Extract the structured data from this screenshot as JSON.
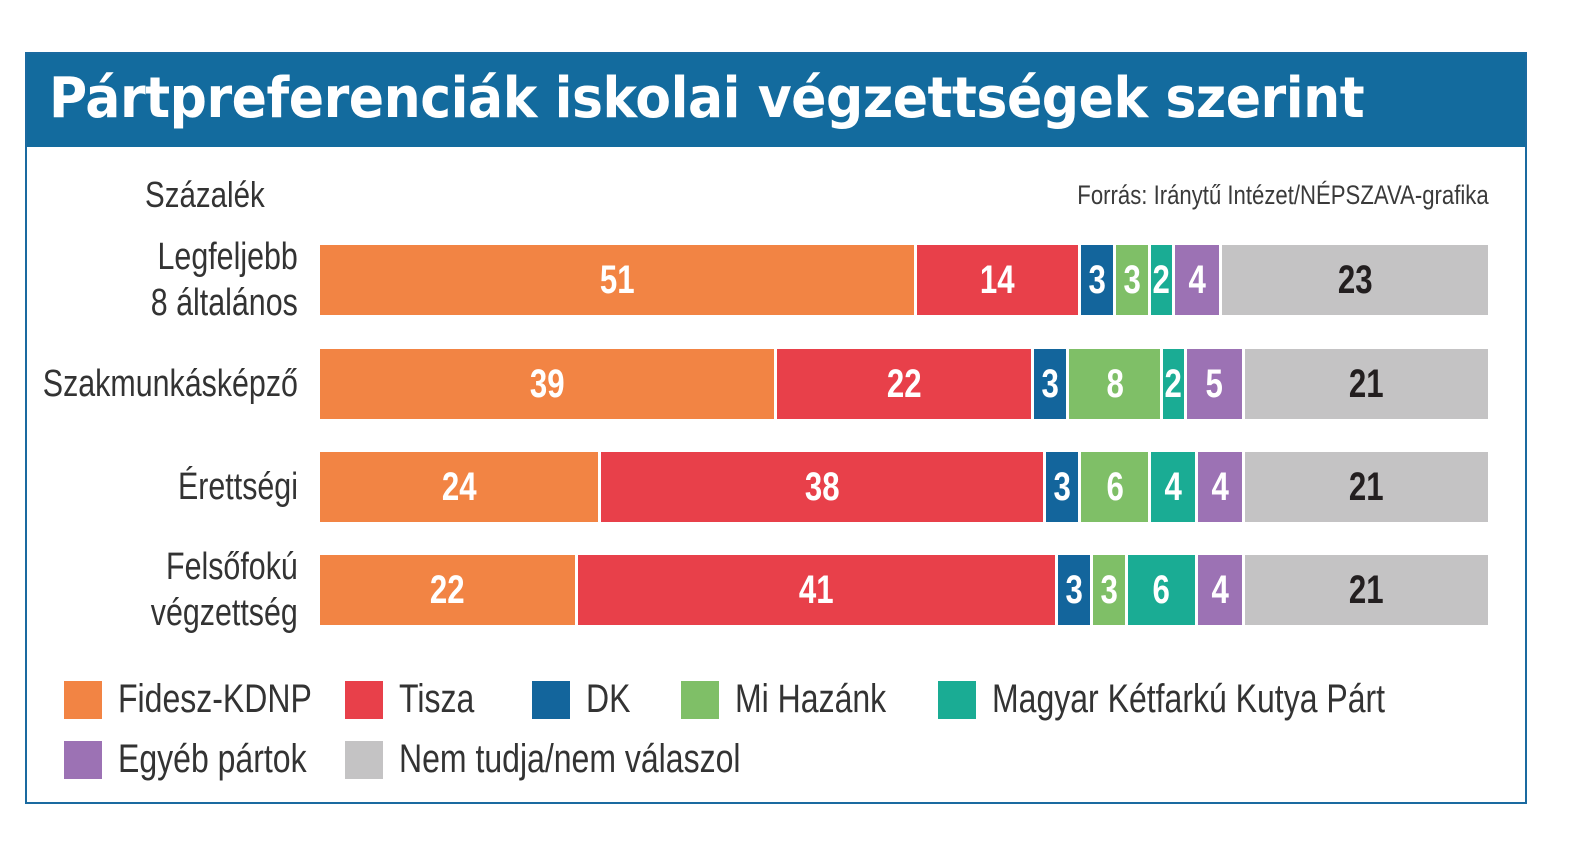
{
  "header": {
    "title": "Pártpreferenciák iskolai végzettségek szerint",
    "unit": "Százalék",
    "source": "Forrás: Iránytű Intézet/NÉPSZAVA-grafika"
  },
  "colors": {
    "header_bg": "#136b9e",
    "Fidesz-KDNP": "#f28444",
    "Tisza": "#e8404a",
    "DK": "#13659c",
    "Mi Hazánk": "#7fbf67",
    "Magyar Kétfarkú Kutya Párt": "#1aac94",
    "Egyéb pártok": "#9c72b4",
    "Nem tudja/nem válaszol": "#c4c3c4"
  },
  "chart_data": {
    "type": "bar",
    "orientation": "horizontal",
    "stacked": true,
    "title": "Pártpreferenciák iskolai végzettségek szerint",
    "subtitle": "Százalék",
    "source": "Forrás: Iránytű Intézet/NÉPSZAVA-grafika",
    "xlabel": "",
    "ylabel": "",
    "xlim": [
      0,
      100
    ],
    "grid": false,
    "legend_position": "bottom",
    "categories": [
      [
        "Legfeljebb",
        "8 általános"
      ],
      [
        "Szakmunkásképző"
      ],
      [
        "Érettségi"
      ],
      [
        "Felsőfokú",
        "végzettség"
      ]
    ],
    "series": [
      {
        "name": "Fidesz-KDNP",
        "values": [
          51,
          39,
          24,
          22
        ]
      },
      {
        "name": "Tisza",
        "values": [
          14,
          22,
          38,
          41
        ]
      },
      {
        "name": "DK",
        "values": [
          3,
          3,
          3,
          3
        ]
      },
      {
        "name": "Mi Hazánk",
        "values": [
          3,
          8,
          6,
          3
        ]
      },
      {
        "name": "Magyar Kétfarkú Kutya Párt",
        "values": [
          2,
          2,
          4,
          6
        ]
      },
      {
        "name": "Egyéb pártok",
        "values": [
          4,
          5,
          4,
          4
        ]
      },
      {
        "name": "Nem tudja/nem válaszol",
        "values": [
          23,
          21,
          21,
          21
        ]
      }
    ],
    "label_colors": {
      "Nem tudja/nem válaszol": "#231f20",
      "default": "#ffffff"
    }
  }
}
